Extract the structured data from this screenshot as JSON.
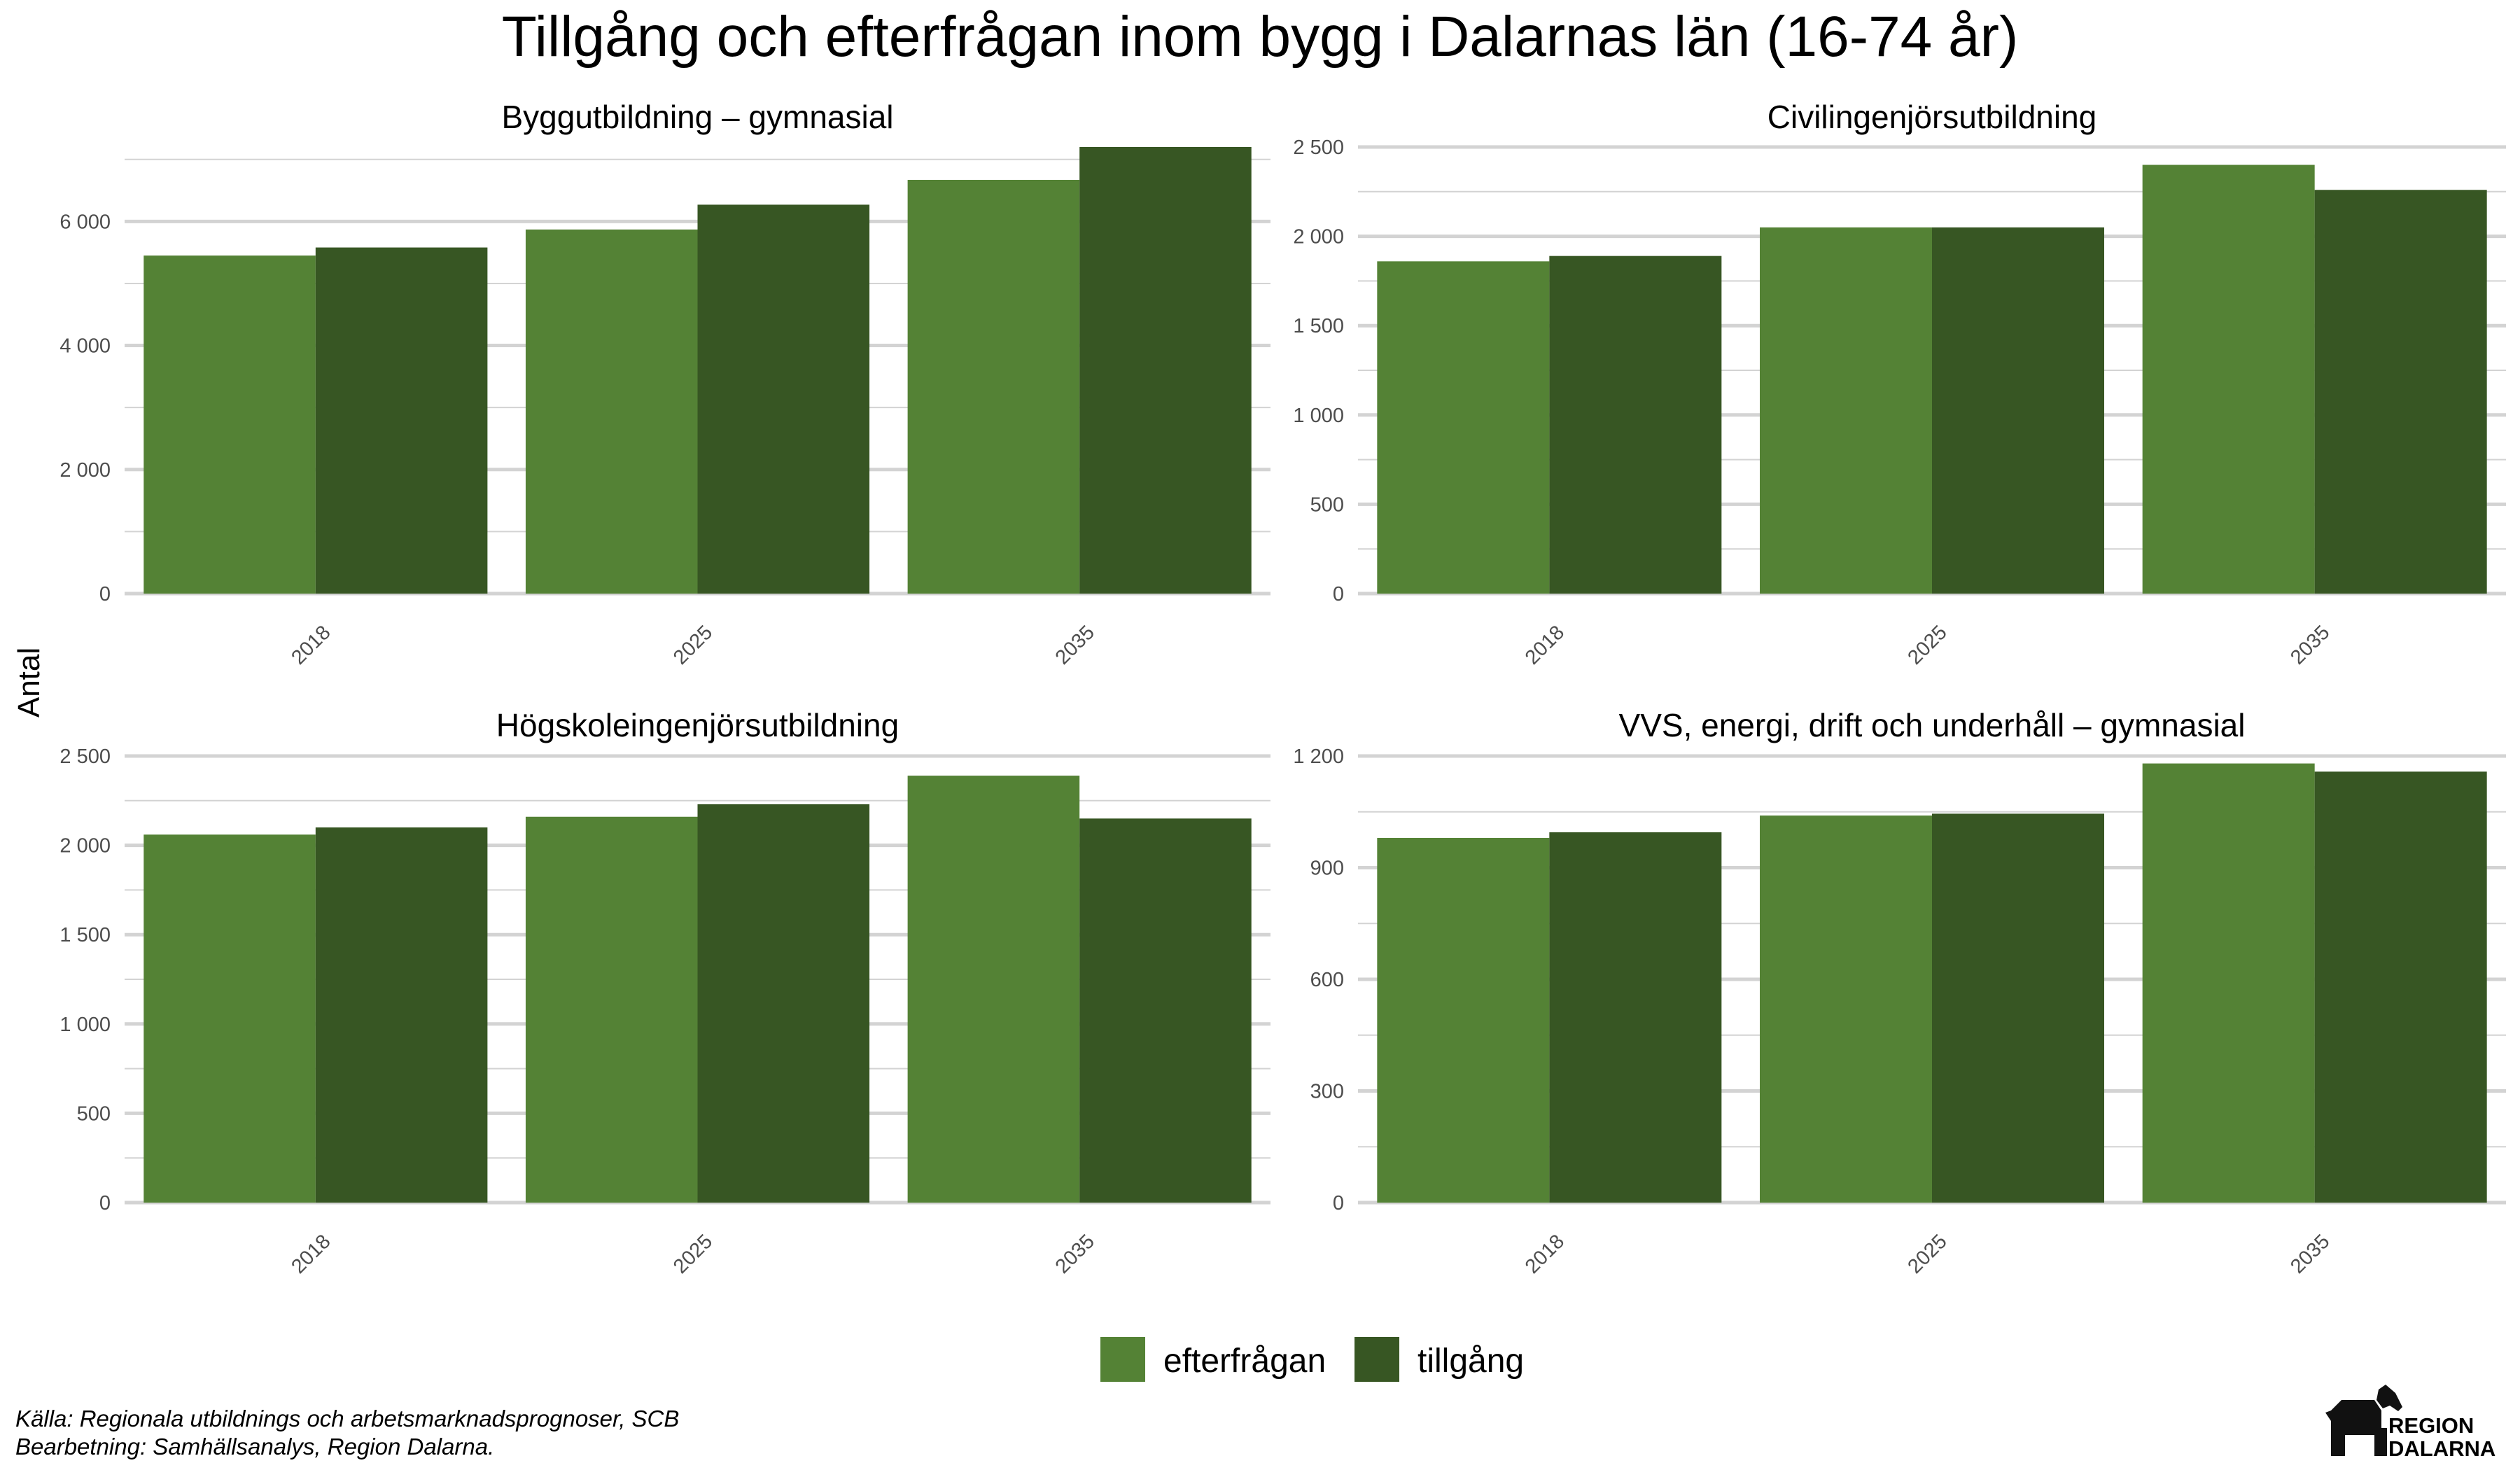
{
  "chart_data": {
    "type": "bar",
    "title": "Tillgång och efterfrågan inom bygg i Dalarnas län (16-74 år)",
    "ylabel": "Antal",
    "categories": [
      "2018",
      "2025",
      "2035"
    ],
    "series_names": [
      "efterfrågan",
      "tillgång"
    ],
    "colors": {
      "efterfrågan": "#548235",
      "tillgång": "#375623",
      "grid": "#d3d3d3"
    },
    "legend_position": "bottom",
    "grid": true,
    "facets": [
      {
        "title": "Byggutbildning – gymnasial",
        "ylim": [
          0,
          7200
        ],
        "major_ticks": [
          0,
          2000,
          4000,
          6000
        ],
        "tick_labels": [
          "0",
          "2 000",
          "4 000",
          "6 000"
        ],
        "minor_ticks": [
          1000,
          3000,
          5000,
          7000
        ],
        "series": [
          {
            "name": "efterfrågan",
            "values": [
              5450,
              5870,
              6670
            ]
          },
          {
            "name": "tillgång",
            "values": [
              5580,
              6270,
              7200
            ]
          }
        ]
      },
      {
        "title": "Civilingenjörsutbildning",
        "ylim": [
          0,
          2500
        ],
        "major_ticks": [
          0,
          500,
          1000,
          1500,
          2000,
          2500
        ],
        "tick_labels": [
          "0",
          "500",
          "1 000",
          "1 500",
          "2 000",
          "2 500"
        ],
        "minor_ticks": [
          250,
          750,
          1250,
          1750,
          2250
        ],
        "series": [
          {
            "name": "efterfrågan",
            "values": [
              1860,
              2050,
              2400
            ]
          },
          {
            "name": "tillgång",
            "values": [
              1890,
              2050,
              2260
            ]
          }
        ]
      },
      {
        "title": "Högskoleingenjörsutbildning",
        "ylim": [
          0,
          2500
        ],
        "major_ticks": [
          0,
          500,
          1000,
          1500,
          2000,
          2500
        ],
        "tick_labels": [
          "0",
          "500",
          "1 000",
          "1 500",
          "2 000",
          "2 500"
        ],
        "minor_ticks": [
          250,
          750,
          1250,
          1750,
          2250
        ],
        "series": [
          {
            "name": "efterfrågan",
            "values": [
              2060,
              2160,
              2390
            ]
          },
          {
            "name": "tillgång",
            "values": [
              2100,
              2230,
              2150
            ]
          }
        ]
      },
      {
        "title": "VVS, energi, drift och underhåll – gymnasial",
        "ylim": [
          0,
          1200
        ],
        "major_ticks": [
          0,
          300,
          600,
          900,
          1200
        ],
        "tick_labels": [
          "0",
          "300",
          "600",
          "900",
          "1 200"
        ],
        "minor_ticks": [
          150,
          450,
          750,
          1050
        ],
        "series": [
          {
            "name": "efterfrågan",
            "values": [
              980,
              1040,
              1180
            ]
          },
          {
            "name": "tillgång",
            "values": [
              995,
              1045,
              1158
            ]
          }
        ]
      }
    ]
  },
  "caption": {
    "source": "Källa: Regionala utbildnings och arbetsmarknadsprognoser, SCB",
    "processing": "Bearbetning: Samhällsanalys, Region Dalarna."
  },
  "logo": {
    "line1": "REGION",
    "line2": "DALARNA"
  }
}
